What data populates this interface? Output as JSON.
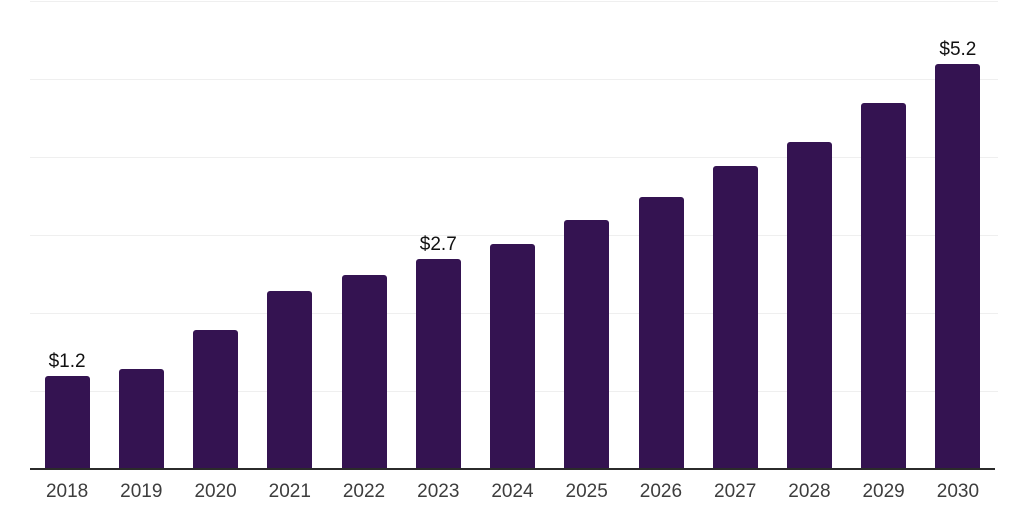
{
  "chart_data": {
    "type": "bar",
    "title": "",
    "xlabel": "",
    "ylabel": "",
    "categories": [
      "2018",
      "2019",
      "2020",
      "2021",
      "2022",
      "2023",
      "2024",
      "2025",
      "2026",
      "2027",
      "2028",
      "2029",
      "2030"
    ],
    "values": [
      1.2,
      1.3,
      1.8,
      2.3,
      2.5,
      2.7,
      2.9,
      3.2,
      3.5,
      3.9,
      4.2,
      4.7,
      5.2
    ],
    "data_labels": [
      "$1.2",
      "",
      "",
      "",
      "",
      "$2.7",
      "",
      "",
      "",
      "",
      "",
      "",
      "$5.2"
    ],
    "ylim": [
      0,
      6
    ],
    "grid": true,
    "legend": false,
    "colors": {
      "bar": "#341351",
      "gridline": "#efefef",
      "axis_line": "#2b2b2b",
      "tick_label": "#3d3d3d",
      "data_label": "#111111",
      "background": "#ffffff"
    }
  }
}
